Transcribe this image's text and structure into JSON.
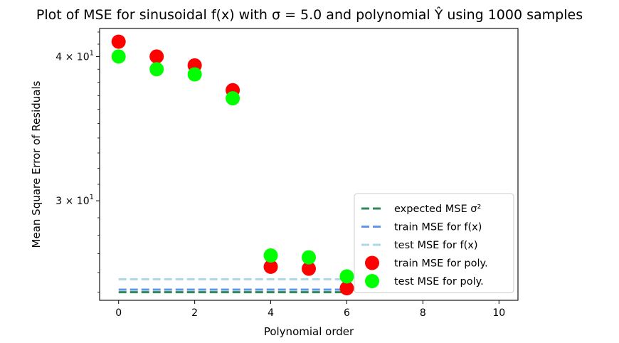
{
  "chart_data": {
    "type": "scatter",
    "title": "Plot of MSE for sinusoidal f(x) with σ = 5.0 and polynomial Ŷ using 1000 samples",
    "xlabel": "Polynomial order",
    "ylabel": "Mean Square Error of Residuals",
    "yscale": "log",
    "xlim": [
      -0.5,
      10.5
    ],
    "ylim": [
      24.6,
      42.3
    ],
    "x_ticks": [
      0,
      2,
      4,
      6,
      8,
      10
    ],
    "x_tick_labels": [
      "0",
      "2",
      "4",
      "6",
      "8",
      "10"
    ],
    "y_ticks": [
      30,
      40
    ],
    "y_tick_labels": [
      "3 × 10",
      "4 × 10"
    ],
    "y_tick_exponent": "1",
    "grid": false,
    "legend_position": "lower right",
    "series": [
      {
        "name": "expected MSE σ²",
        "kind": "hline",
        "color": "#2e8b57",
        "dash": true,
        "y": 25.0,
        "x_range": [
          0,
          6
        ]
      },
      {
        "name": "train MSE for f(x)",
        "kind": "hline",
        "color": "#6495ed",
        "dash": true,
        "y": 25.13,
        "x_range": [
          0,
          6
        ]
      },
      {
        "name": "test MSE for f(x)",
        "kind": "hline",
        "color": "#add8e6",
        "dash": true,
        "y": 25.65,
        "x_range": [
          0,
          6
        ]
      },
      {
        "name": "train MSE for poly.",
        "kind": "scatter",
        "color": "#ff0000",
        "x": [
          0,
          1,
          2,
          3,
          4,
          5,
          6
        ],
        "y": [
          41.2,
          40.0,
          39.3,
          37.4,
          26.3,
          26.2,
          25.2
        ]
      },
      {
        "name": "test MSE for poly.",
        "kind": "scatter",
        "color": "#00ff00",
        "x": [
          0,
          1,
          2,
          3,
          4,
          5,
          6
        ],
        "y": [
          40.0,
          39.0,
          38.6,
          36.8,
          26.9,
          26.8,
          25.8
        ]
      }
    ]
  }
}
